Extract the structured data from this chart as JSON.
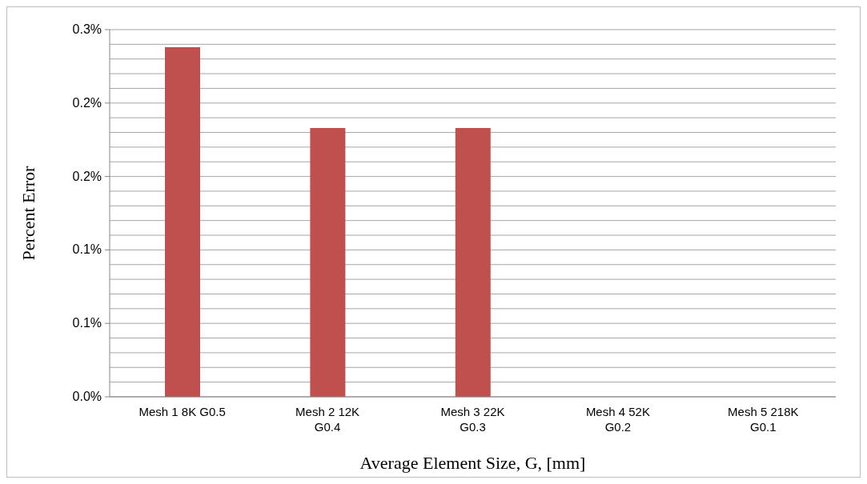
{
  "chart_data": {
    "type": "bar",
    "xlabel": "Average Element Size, G, [mm]",
    "ylabel": "Percent Error",
    "categories": [
      "Mesh 1 8K G0.5",
      "Mesh 2 12K G0.4",
      "Mesh 3 22K G0.3",
      "Mesh 4 52K G0.2",
      "Mesh 5 218K G0.1"
    ],
    "values": [
      0.238,
      0.183,
      0.183,
      0,
      0
    ],
    "color": "#c0504d",
    "ylim": [
      0,
      0.25
    ],
    "yticks": [
      {
        "value": 0,
        "label": "0.0%"
      },
      {
        "value": 0.01,
        "label": null
      },
      {
        "value": 0.02,
        "label": null
      },
      {
        "value": 0.03,
        "label": null
      },
      {
        "value": 0.04,
        "label": null
      },
      {
        "value": 0.05,
        "label": "0.1%"
      },
      {
        "value": 0.06,
        "label": null
      },
      {
        "value": 0.07,
        "label": null
      },
      {
        "value": 0.08,
        "label": null
      },
      {
        "value": 0.09,
        "label": null
      },
      {
        "value": 0.1,
        "label": "0.1%"
      },
      {
        "value": 0.11,
        "label": null
      },
      {
        "value": 0.12,
        "label": null
      },
      {
        "value": 0.13,
        "label": null
      },
      {
        "value": 0.14,
        "label": null
      },
      {
        "value": 0.15,
        "label": "0.2%"
      },
      {
        "value": 0.16,
        "label": null
      },
      {
        "value": 0.17,
        "label": null
      },
      {
        "value": 0.18,
        "label": null
      },
      {
        "value": 0.19,
        "label": null
      },
      {
        "value": 0.2,
        "label": "0.2%"
      },
      {
        "value": 0.21,
        "label": null
      },
      {
        "value": 0.22,
        "label": null
      },
      {
        "value": 0.23,
        "label": null
      },
      {
        "value": 0.24,
        "label": null
      },
      {
        "value": 0.25,
        "label": "0.3%"
      }
    ],
    "grid": "y",
    "legend": false
  }
}
